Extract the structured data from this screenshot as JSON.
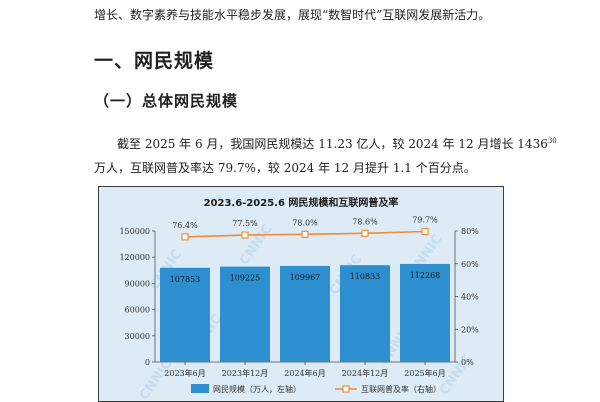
{
  "intro_line": "增长、数字素养与技能水平稳步发展，展现“数智时代”互联网发展新活力。",
  "section": {
    "heading": "一、网民规模",
    "subheading": "（一）总体网民规模"
  },
  "paragraph": {
    "line1_pre": "截至 2025 年 6 月，我国网民规模达 11.23 亿人，较 2024 年 12 月增长 1436",
    "footnote": "30",
    "line2": "万人，互联网普及率达 79.7%，较 2024 年 12 月提升 1.1 个百分点。"
  },
  "chart_data": {
    "type": "bar+line",
    "title": "2023.6-2025.6 网民规模和互联网普及率",
    "watermark": "CNNIC",
    "categories": [
      "2023年6月",
      "2023年12月",
      "2024年6月",
      "2024年12月",
      "2025年6月"
    ],
    "series": [
      {
        "name": "网民规模（万人，左轴）",
        "type": "bar",
        "axis": "left",
        "values": [
          107853,
          109225,
          109967,
          110833,
          112268
        ],
        "labels": [
          "107853",
          "109225",
          "109967",
          "110833",
          "112268"
        ],
        "color": "#2e8fd0"
      },
      {
        "name": "互联网普及率（右轴）",
        "type": "line",
        "axis": "right",
        "values": [
          76.4,
          77.5,
          78.0,
          78.6,
          79.7
        ],
        "labels": [
          "76.4%",
          "77.5%",
          "78.0%",
          "78.6%",
          "79.7%"
        ],
        "color": "#ef8d3a"
      }
    ],
    "y_left": {
      "min": 0,
      "max": 150000,
      "ticks": [
        "0",
        "30000",
        "60000",
        "90000",
        "120000",
        "150000"
      ]
    },
    "y_right": {
      "min": 0,
      "max": 80,
      "ticks": [
        "0%",
        "20%",
        "40%",
        "60%",
        "80%"
      ]
    },
    "legend_position": "bottom",
    "grid": false,
    "colors": {
      "background": "#dcebf6",
      "bar": "#2e8fd0",
      "line": "#ef8d3a"
    }
  }
}
